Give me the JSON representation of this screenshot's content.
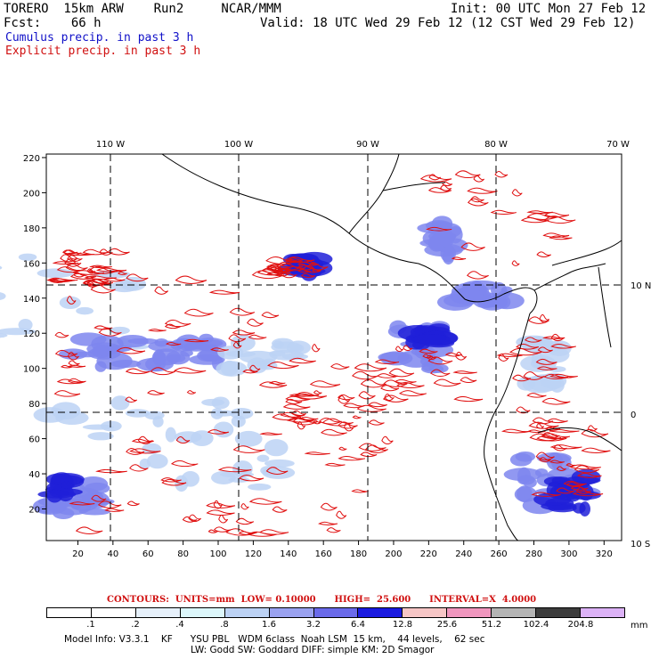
{
  "header": {
    "title_left": "TORERO  15km ARW    Run2     NCAR/MMM",
    "init": "Init: 00 UTC Mon 27 Feb 12",
    "fcst": "Fcst:    66 h",
    "valid": "Valid: 18 UTC Wed 29 Feb 12 (12 CST Wed 29 Feb 12)",
    "cumulus": "Cumulus precip. in past 3 h",
    "explicit": "Explicit precip. in past 3 h"
  },
  "map": {
    "lon_labels": [
      "110 W",
      "100 W",
      "90 W",
      "80 W",
      "70 W"
    ],
    "lat_labels": [
      "10 N",
      "0",
      "10 S"
    ],
    "y_ticks": [
      "220",
      "200",
      "180",
      "160",
      "140",
      "120",
      "100",
      "80",
      "60",
      "40",
      "20"
    ],
    "x_ticks": [
      "20",
      "40",
      "60",
      "80",
      "100",
      "120",
      "140",
      "160",
      "180",
      "200",
      "220",
      "240",
      "260",
      "280",
      "300",
      "320"
    ],
    "colors": {
      "contour": "#e01010",
      "coast": "#000000",
      "cumulus_light": "#bcd2f4",
      "cumulus_mid": "#7e86ee",
      "cumulus_dark": "#2020d8"
    }
  },
  "contours": {
    "text": "CONTOURS:  UNITS=mm  LOW= 0.10000      HIGH=  25.600      INTERVAL=X  4.0000"
  },
  "colorbar": {
    "labels": [
      ".1",
      ".2",
      ".4",
      ".8",
      "1.6",
      "3.2",
      "6.4",
      "12.8",
      "25.6",
      "51.2",
      "102.4",
      "204.8"
    ],
    "colors": [
      "#ffffff",
      "#ffffff",
      "#e6f0fa",
      "#dcf6fa",
      "#bcd2f4",
      "#9aa2f0",
      "#6a6aea",
      "#1a1ae0",
      "#f6c6c6",
      "#f096be",
      "#b4b4b4",
      "#3c3c3c",
      "#dcb2f6"
    ],
    "unit": "mm"
  },
  "footer": {
    "line1": "Model Info: V3.3.1    KF      YSU PBL   WDM 6class  Noah LSM  15 km,    44 levels,    62 sec",
    "line2": "LW: Godd SW: Goddard DIFF: simple KM: 2D Smagor"
  }
}
